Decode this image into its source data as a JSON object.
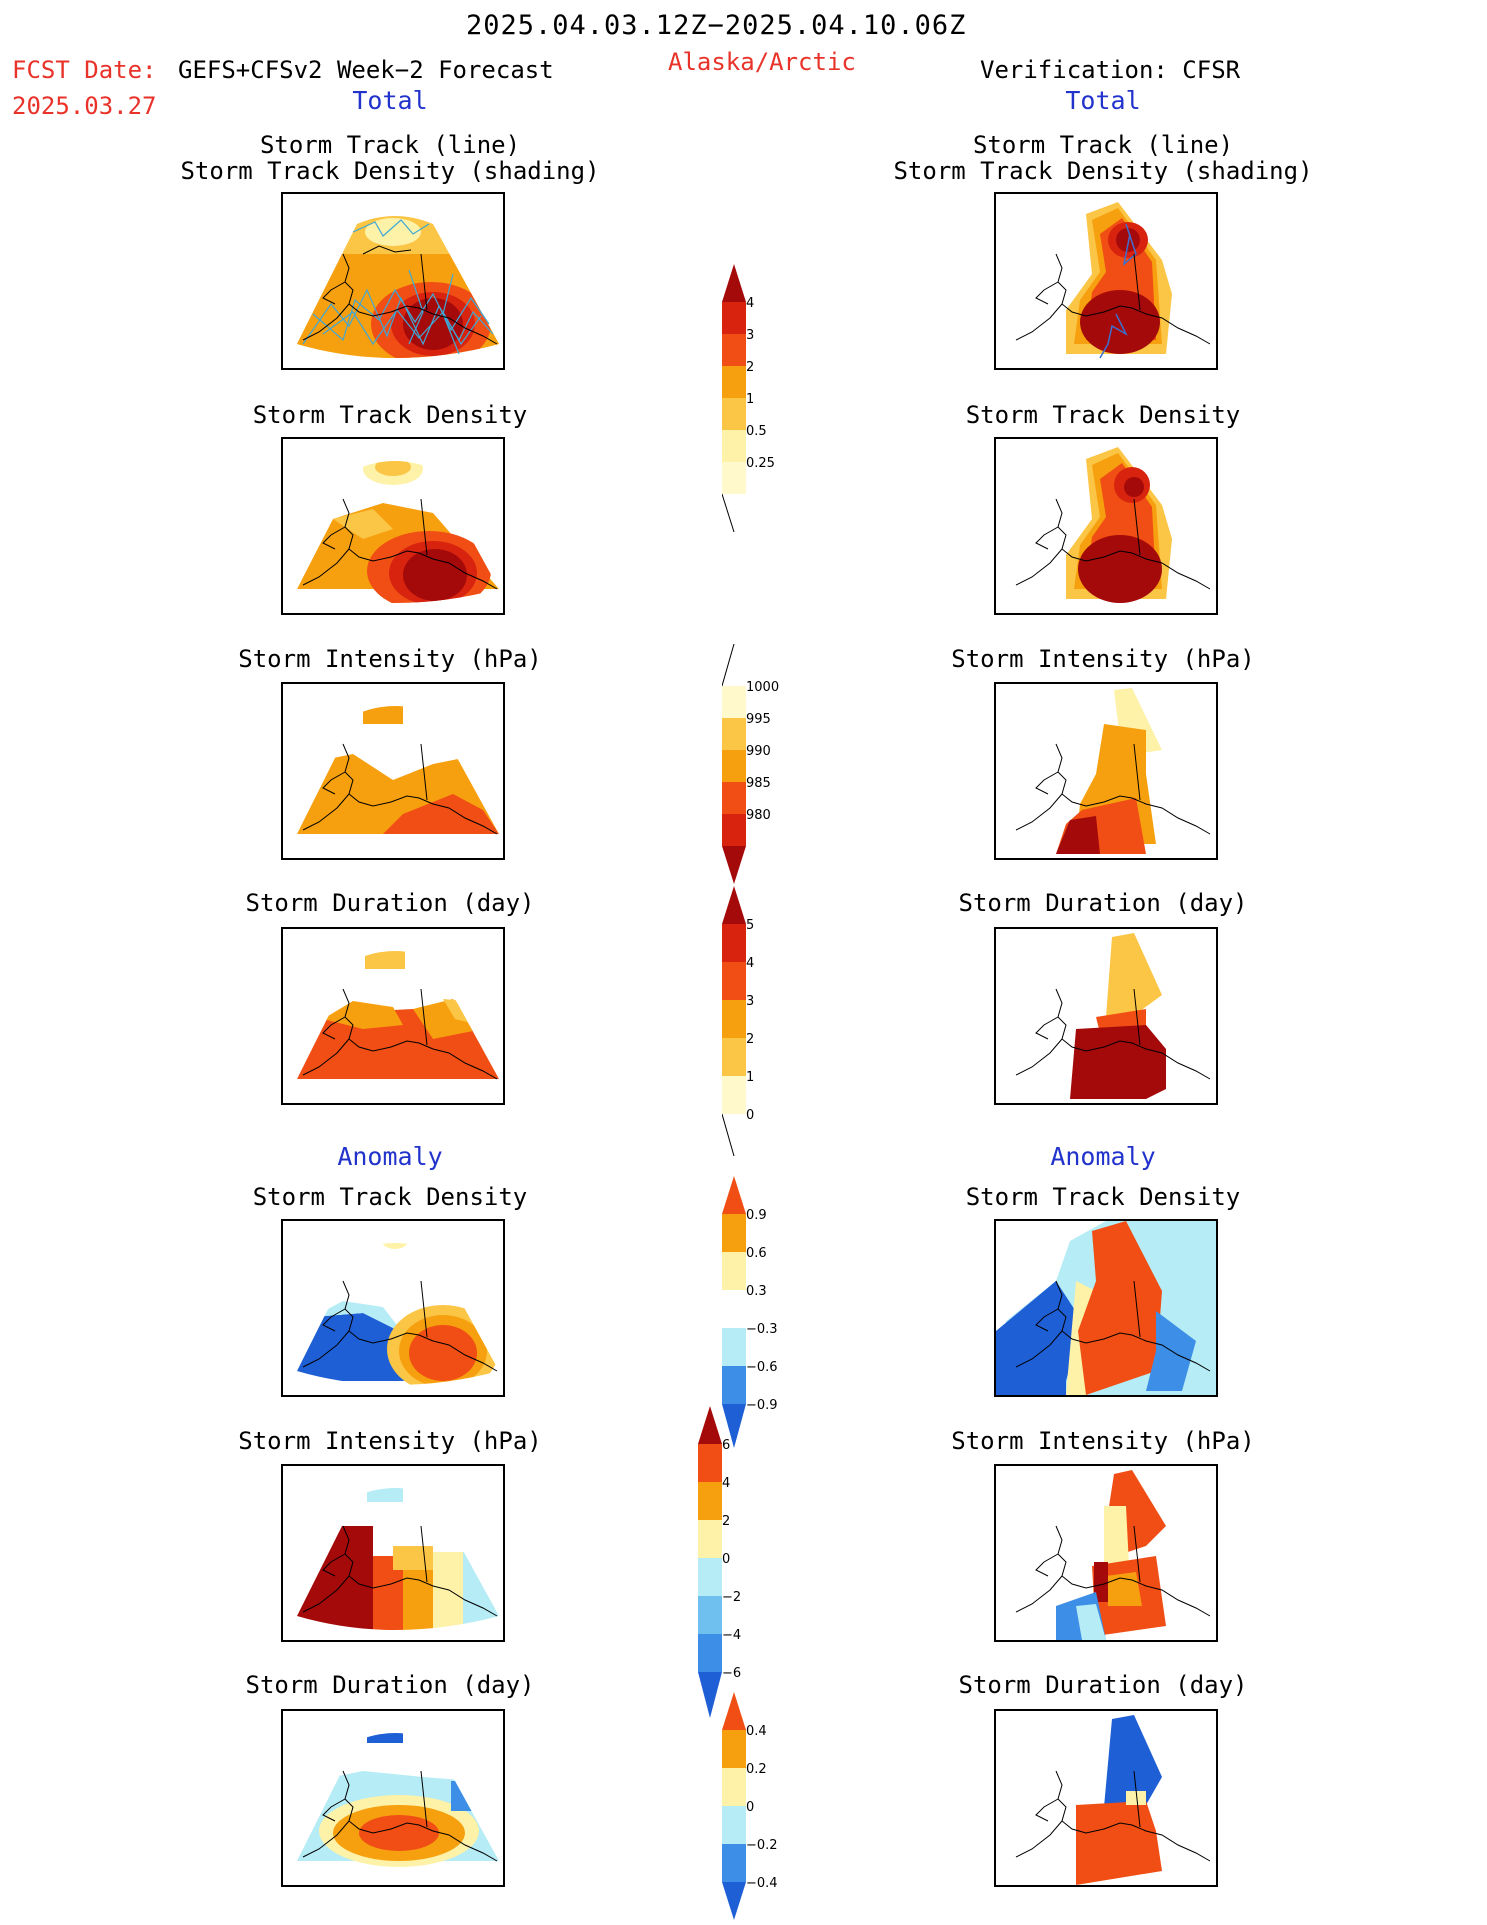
{
  "header": {
    "period": "2025.04.03.12Z−2025.04.10.06Z",
    "fcst_label": "FCST Date:",
    "fcst_model": "GEFS+CFSv2 Week−2 Forecast",
    "fcst_date": "2025.03.27",
    "region": "Alaska/Arctic",
    "verification": "Verification: CFSR"
  },
  "sections": {
    "total": "Total",
    "anomaly": "Anomaly"
  },
  "panel_titles": {
    "track_line": "Storm Track (line)",
    "track_shading": "Storm Track Density (shading)",
    "density": "Storm Track Density",
    "intensity": "Storm Intensity (hPa)",
    "duration": "Storm Duration (day)"
  },
  "colors": {
    "dark_red": "#a50a0a",
    "red": "#d8230f",
    "red_orange": "#f04e14",
    "orange": "#f7a00f",
    "light_orange": "#fbc545",
    "pale_yellow": "#fdf2a8",
    "light_blue": "#b6ecf5",
    "mid_blue": "#6fc0ef",
    "blue": "#3d8ee6",
    "dark_blue": "#1e5fd6",
    "track_line": "#3fa7d6"
  },
  "colorbars": [
    {
      "id": "total-density",
      "labels": [
        "4",
        "3",
        "2",
        "1",
        "0.5",
        "0.25"
      ]
    },
    {
      "id": "total-intensity",
      "labels": [
        "1000",
        "995",
        "990",
        "985",
        "980"
      ]
    },
    {
      "id": "total-duration",
      "labels": [
        "5",
        "4",
        "3",
        "2",
        "1",
        "0"
      ]
    },
    {
      "id": "anom-density",
      "labels": [
        "0.9",
        "0.6",
        "0.3",
        "−0.3",
        "−0.6",
        "−0.9"
      ]
    },
    {
      "id": "anom-intensity",
      "labels": [
        "6",
        "4",
        "2",
        "0",
        "−2",
        "−4",
        "−6"
      ]
    },
    {
      "id": "anom-duration",
      "labels": [
        "0.4",
        "0.2",
        "0",
        "−0.2",
        "−0.4"
      ]
    }
  ]
}
